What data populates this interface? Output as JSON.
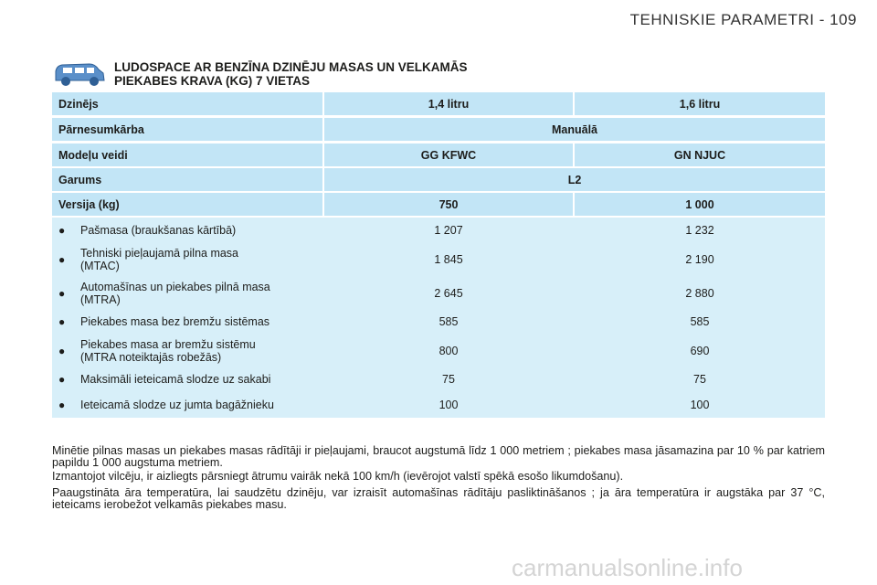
{
  "header": {
    "title": "TEHNISKIE PARAMETRI - 109"
  },
  "document": {
    "title_lines": [
      "LUDOSPACE AR BENZĪNA DZINĒJU MASAS UN VELKAMĀS",
      "PIEKABES KRAVA (KG) 7 VIETAS"
    ]
  },
  "table": {
    "header_rows": [
      [
        "Dzinējs",
        "1,4 litru",
        "1,6 litru"
      ],
      [
        "Pārnesumkārba",
        "Manuālā"
      ],
      [
        "Modeļu veidi",
        "GG KFWC",
        "GN NJUC"
      ],
      [
        "Garums",
        "L2"
      ],
      [
        "Versija (kg)",
        "750",
        "1 000"
      ]
    ],
    "rows": [
      {
        "label": [
          "Pašmasa (braukšanas kārtībā)"
        ],
        "values": [
          "1 207",
          "1 232"
        ]
      },
      {
        "label": [
          "Tehniski pieļaujamā pilna masa",
          "(MTAC)"
        ],
        "values": [
          "1 845",
          "2 190"
        ]
      },
      {
        "label": [
          "Automašīnas un piekabes pilnā masa",
          "(MTRA)"
        ],
        "values": [
          "2 645",
          "2 880"
        ]
      },
      {
        "label": [
          "Piekabes masa bez bremžu sistēmas"
        ],
        "values": [
          "585",
          "585"
        ]
      },
      {
        "label": [
          "Piekabes masa ar bremžu sistēmu",
          "(MTRA noteiktajās robežās)"
        ],
        "values": [
          "800",
          "690"
        ]
      },
      {
        "label": [
          "Maksimāli ieteicamā slodze uz sakabi"
        ],
        "values": [
          "75",
          "75"
        ]
      },
      {
        "label": [
          "Ieteicamā slodze uz jumta bagāžnieku"
        ],
        "values": [
          "100",
          "100"
        ]
      }
    ]
  },
  "notes": [
    "Minētie pilnas masas un piekabes masas rādītāji ir pieļaujami, braucot augstumā līdz 1 000 metriem ; piekabes masa jāsamazina par 10 % par katriem papildu 1 000 augstuma metriem.",
    "Izmantojot vilcēju, ir aizliegts pārsniegt ātrumu vairāk nekā 100 km/h (ievērojot valstī spēkā esošo likumdošanu).",
    "Paaugstināta āra temperatūra, lai saudzētu dzinēju, var izraisīt automašīnas rādītāju pasliktināšanos ; ja āra temperatūra ir augstāka par 37 °C, ieteicams ierobežot velkamās piekabes masu."
  ],
  "footer": {
    "watermark": "carmanualsonline.info"
  }
}
